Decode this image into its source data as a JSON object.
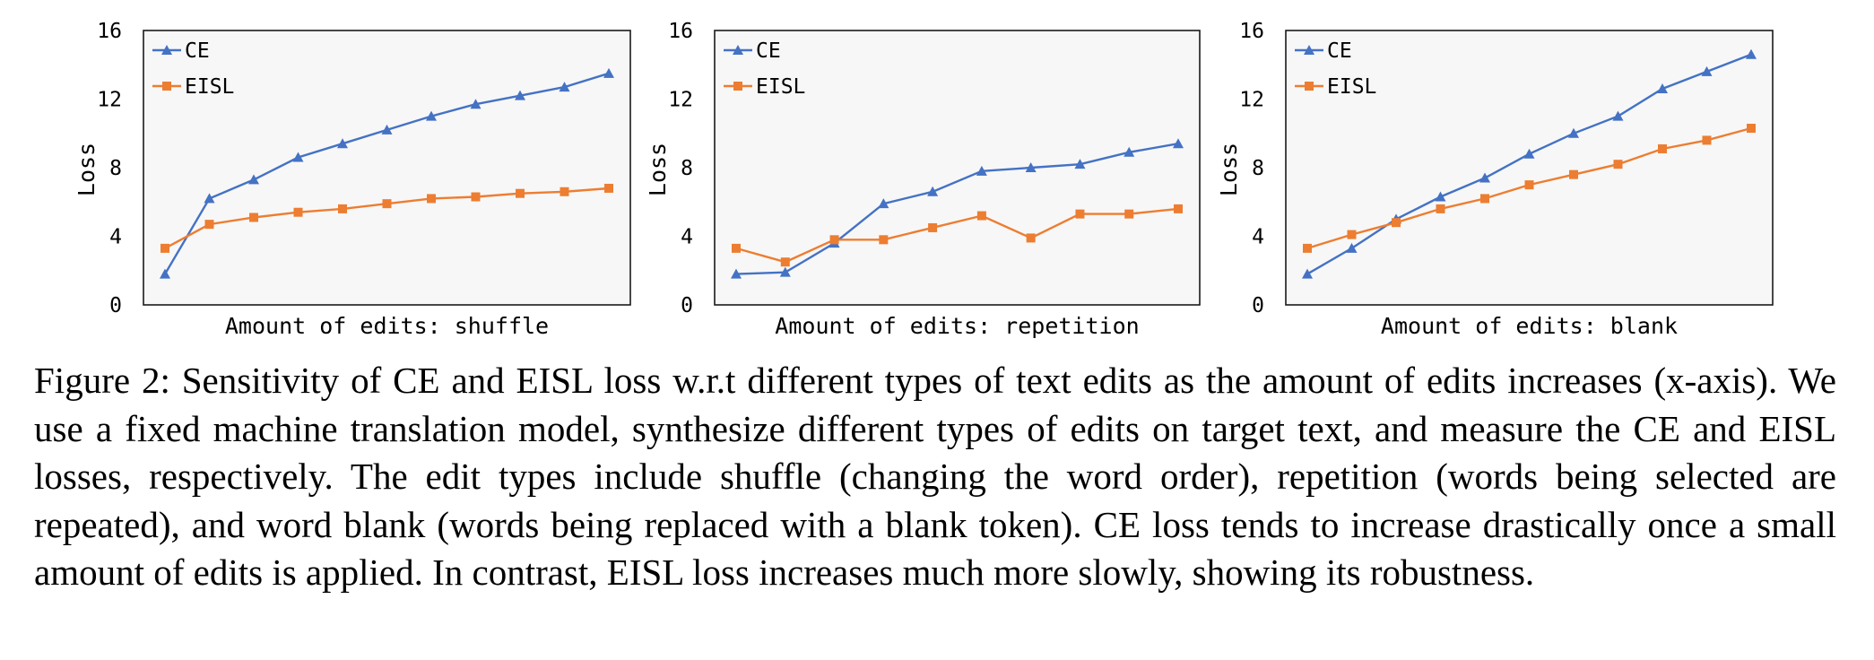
{
  "chart_data": [
    {
      "type": "line",
      "xlabel": "Amount of edits: shuffle",
      "ylabel": "Loss",
      "ylim": [
        0,
        16
      ],
      "yticks": [
        "0",
        "4",
        "8",
        "12",
        "16"
      ],
      "grid": false,
      "legend": "top-left",
      "series": [
        {
          "name": "CE",
          "color": "#4472C4",
          "marker": "triangle",
          "values": [
            1.8,
            6.2,
            7.3,
            8.6,
            9.4,
            10.2,
            11.0,
            11.7,
            12.2,
            12.7,
            13.5
          ]
        },
        {
          "name": "EISL",
          "color": "#ED7D31",
          "marker": "square",
          "values": [
            3.3,
            4.7,
            5.1,
            5.4,
            5.6,
            5.9,
            6.2,
            6.3,
            6.5,
            6.6,
            6.8
          ]
        }
      ]
    },
    {
      "type": "line",
      "xlabel": "Amount of edits: repetition",
      "ylabel": "Loss",
      "ylim": [
        0,
        16
      ],
      "yticks": [
        "0",
        "4",
        "8",
        "12",
        "16"
      ],
      "grid": false,
      "legend": "top-left",
      "series": [
        {
          "name": "CE",
          "color": "#4472C4",
          "marker": "triangle",
          "values": [
            1.8,
            1.9,
            3.6,
            5.9,
            6.6,
            7.8,
            8.0,
            8.2,
            8.9,
            9.4
          ]
        },
        {
          "name": "EISL",
          "color": "#ED7D31",
          "marker": "square",
          "values": [
            3.3,
            2.5,
            3.8,
            3.8,
            4.5,
            5.2,
            3.9,
            5.3,
            5.3,
            5.6
          ]
        }
      ]
    },
    {
      "type": "line",
      "xlabel": "Amount of edits: blank",
      "ylabel": "Loss",
      "ylim": [
        0,
        16
      ],
      "yticks": [
        "0",
        "4",
        "8",
        "12",
        "16"
      ],
      "grid": false,
      "legend": "top-left",
      "series": [
        {
          "name": "CE",
          "color": "#4472C4",
          "marker": "triangle",
          "values": [
            1.8,
            3.3,
            5.0,
            6.3,
            7.4,
            8.8,
            10.0,
            11.0,
            12.6,
            13.6,
            14.6
          ]
        },
        {
          "name": "EISL",
          "color": "#ED7D31",
          "marker": "square",
          "values": [
            3.3,
            4.1,
            4.8,
            5.6,
            6.2,
            7.0,
            7.6,
            8.2,
            9.1,
            9.6,
            10.3
          ]
        }
      ]
    }
  ],
  "caption": "Figure 2: Sensitivity of CE and EISL loss w.r.t different types of text edits as the amount of edits increases (x-axis). We use a fixed machine translation model, synthesize different types of edits on target text, and measure the CE and EISL losses, respectively. The edit types include shuffle (changing the word order), repetition (words being selected are repeated), and word blank (words being replaced with a blank token). CE loss tends to increase drastically once a small amount of edits is applied. In contrast, EISL loss increases much more slowly, showing its robustness."
}
